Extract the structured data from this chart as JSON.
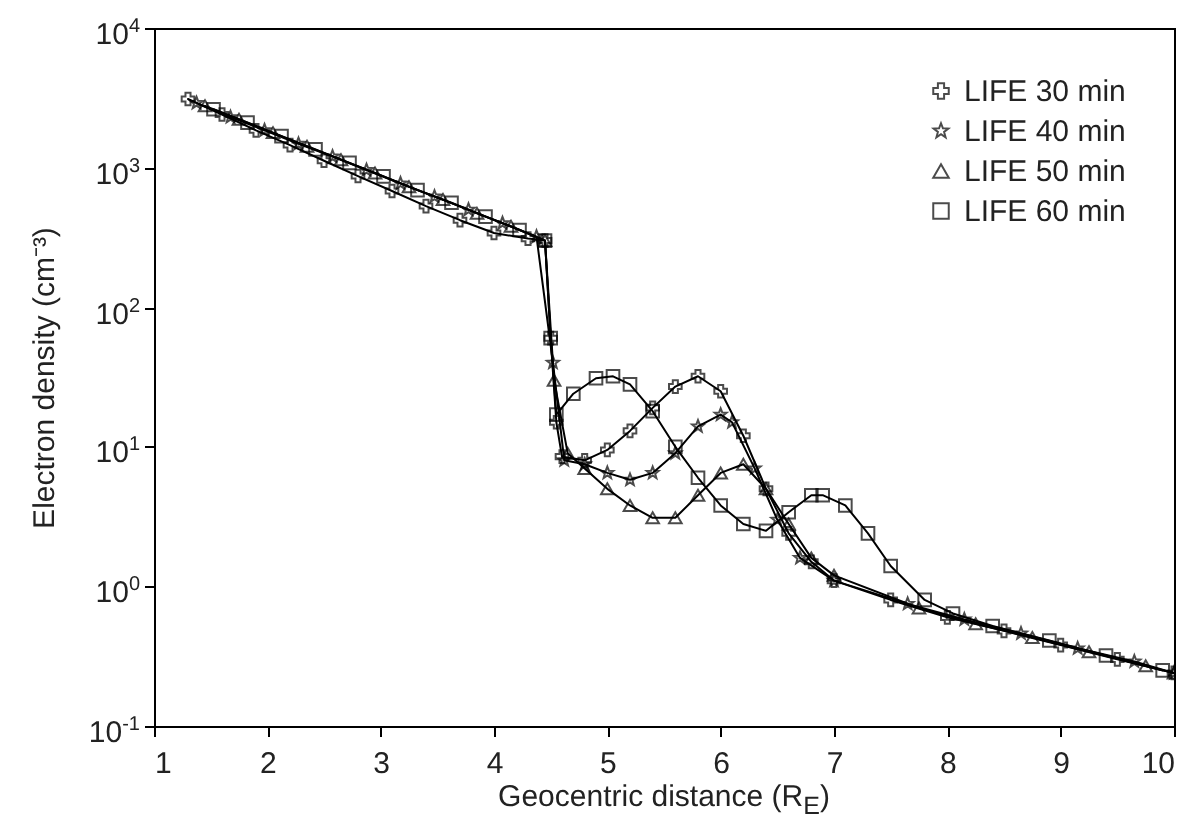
{
  "chart_data": {
    "type": "line",
    "xlabel": "Geocentric distance (R$_{E}$)",
    "ylabel": "Electron density (cm⁻³)",
    "log": "y",
    "grid": false,
    "legend": "top right",
    "line_style": "solid",
    "xlim": [
      1,
      10
    ],
    "xticks": [
      1,
      2,
      3,
      4,
      5,
      6,
      7,
      8,
      9,
      10
    ],
    "ylim": [
      0.1,
      10000
    ],
    "yticks": [
      {
        "value": 0.1,
        "label": "10$^{-1}$"
      },
      {
        "value": 1,
        "label": "10$^{0}$"
      },
      {
        "value": 10,
        "label": "10$^{1}$"
      },
      {
        "value": 100,
        "label": "10$^{2}$"
      },
      {
        "value": 1000,
        "label": "10$^{3}$"
      },
      {
        "value": 10000,
        "label": "10$^{4}$"
      }
    ],
    "series": [
      {
        "name": "LIFE 30 min",
        "color": "#000000",
        "marker": "cross",
        "x": [
          1.3,
          1.6,
          1.9,
          2.2,
          2.5,
          2.8,
          3.1,
          3.4,
          3.7,
          4.0,
          4.3,
          4.45,
          4.5,
          4.55,
          4.6,
          4.8,
          5.0,
          5.2,
          5.4,
          5.6,
          5.8,
          6.0,
          6.2,
          6.4,
          6.6,
          6.8,
          7.0,
          7.5,
          8.0,
          8.5,
          9.0,
          9.5,
          10.0
        ],
        "values": [
          3100,
          2400,
          1850,
          1450,
          1120,
          870,
          680,
          530,
          420,
          340,
          310,
          300,
          60,
          15,
          8.5,
          8,
          9.5,
          13,
          19,
          27,
          32,
          25,
          12,
          5,
          2.4,
          1.5,
          1.1,
          0.8,
          0.6,
          0.48,
          0.38,
          0.3,
          0.24
        ]
      },
      {
        "name": "LIFE 40 min",
        "color": "#000000",
        "marker": "star",
        "x": [
          1.375,
          1.675,
          1.975,
          2.275,
          2.575,
          2.875,
          3.175,
          3.475,
          3.775,
          4.075,
          4.375,
          4.52,
          4.62,
          4.8,
          5.0,
          5.2,
          5.4,
          5.6,
          5.8,
          6.0,
          6.1,
          6.3,
          6.5,
          6.7,
          7.0,
          7.65,
          8.15,
          8.65,
          9.15,
          9.65,
          10.0
        ],
        "values": [
          2900,
          2300,
          1850,
          1480,
          1200,
          960,
          770,
          620,
          500,
          400,
          320,
          40,
          8,
          7.5,
          6.5,
          5.8,
          6.5,
          9,
          14,
          17,
          15,
          7,
          3,
          1.6,
          1.1,
          0.75,
          0.58,
          0.46,
          0.36,
          0.29,
          0.24
        ]
      },
      {
        "name": "LIFE 50 min",
        "color": "#000000",
        "marker": "triangle",
        "x": [
          1.45,
          1.75,
          2.05,
          2.35,
          2.65,
          2.95,
          3.25,
          3.55,
          3.85,
          4.15,
          4.45,
          4.53,
          4.65,
          4.8,
          5.0,
          5.2,
          5.4,
          5.6,
          5.8,
          6.0,
          6.2,
          6.4,
          6.6,
          6.8,
          7.0,
          7.75,
          8.25,
          8.75,
          9.25,
          9.75,
          10.0
        ],
        "values": [
          2770,
          2220,
          1780,
          1420,
          1140,
          915,
          730,
          590,
          470,
          380,
          300,
          30,
          9,
          7,
          5,
          3.8,
          3.1,
          3.1,
          4.5,
          6.5,
          7.5,
          5,
          2.8,
          1.6,
          1.2,
          0.7,
          0.54,
          0.43,
          0.34,
          0.27,
          0.24
        ]
      },
      {
        "name": "LIFE 60 min",
        "color": "#000000",
        "marker": "square",
        "x": [
          1.525,
          1.825,
          2.125,
          2.425,
          2.725,
          3.025,
          3.325,
          3.625,
          3.925,
          4.225,
          4.45,
          4.5,
          4.55,
          4.7,
          4.9,
          5.05,
          5.2,
          5.4,
          5.6,
          5.8,
          6.0,
          6.2,
          6.4,
          6.6,
          6.8,
          6.9,
          7.1,
          7.3,
          7.5,
          7.8,
          8.05,
          8.4,
          8.9,
          9.4,
          9.9
        ],
        "values": [
          2620,
          2100,
          1680,
          1350,
          1080,
          865,
          690,
          560,
          445,
          357,
          300,
          60,
          17,
          24,
          31,
          32,
          28,
          18,
          10,
          6,
          3.8,
          2.8,
          2.5,
          3.4,
          4.5,
          4.5,
          3.8,
          2.4,
          1.4,
          0.8,
          0.64,
          0.52,
          0.41,
          0.32,
          0.25
        ]
      }
    ]
  }
}
